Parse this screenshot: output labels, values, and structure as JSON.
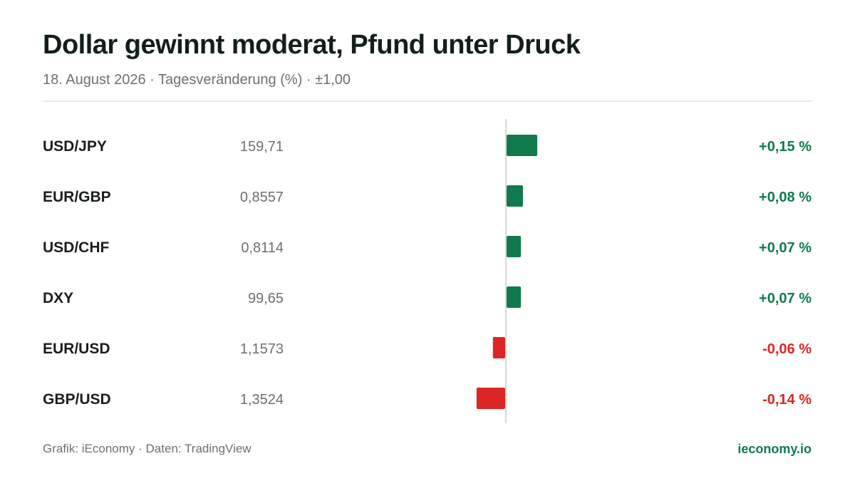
{
  "header": {
    "title": "Dollar gewinnt moderat, Pfund unter Druck",
    "subtitle": "18. August 2026 · Tagesveränderung (%) · ±1,00"
  },
  "footer": {
    "source": "Grafik: iEconomy · Daten: TradingView",
    "brand": "ieconomy.io"
  },
  "colors": {
    "positive": "#107a4c",
    "negative": "#dc2626",
    "axis": "#d5d8d6",
    "label": "#1a1f1c",
    "price": "#6b716e"
  },
  "chart_data": {
    "type": "bar",
    "orientation": "horizontal",
    "title": "Dollar gewinnt moderat, Pfund unter Druck",
    "subtitle": "18. August 2026 · Tagesveränderung (%) · ±1,00",
    "unit": "%",
    "xlim": [
      -1.0,
      1.0
    ],
    "categories": [
      "USD/JPY",
      "EUR/GBP",
      "USD/CHF",
      "DXY",
      "EUR/USD",
      "GBP/USD"
    ],
    "prices": [
      "159,71",
      "0,8557",
      "0,8114",
      "99,65",
      "1,1573",
      "1,3524"
    ],
    "values": [
      0.15,
      0.08,
      0.07,
      0.07,
      -0.06,
      -0.14
    ],
    "value_labels": [
      "+0,15 %",
      "+0,08 %",
      "+0,07 %",
      "+0,07 %",
      "-0,06 %",
      "-0,14 %"
    ]
  }
}
